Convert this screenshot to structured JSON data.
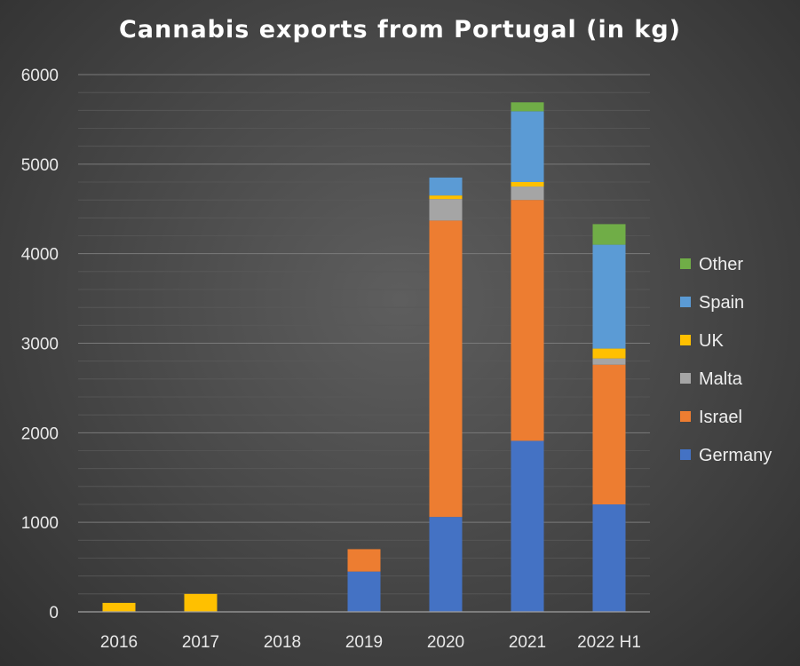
{
  "chart_data": {
    "type": "bar",
    "stacked": true,
    "title": "Cannabis exports from Portugal (in kg)",
    "xlabel": "",
    "ylabel": "",
    "ylim": [
      0,
      6000
    ],
    "yticks": [
      0,
      1000,
      2000,
      3000,
      4000,
      5000,
      6000
    ],
    "grid": true,
    "legend_position": "right",
    "categories": [
      "2016",
      "2017",
      "2018",
      "2019",
      "2020",
      "2021",
      "2022 H1"
    ],
    "series": [
      {
        "name": "Germany",
        "color": "#4472C4",
        "values": [
          0,
          0,
          0,
          450,
          1060,
          1910,
          1200
        ]
      },
      {
        "name": "Israel",
        "color": "#ED7D31",
        "values": [
          0,
          0,
          0,
          250,
          3310,
          2690,
          1560
        ]
      },
      {
        "name": "Malta",
        "color": "#A5A5A5",
        "values": [
          0,
          0,
          0,
          0,
          240,
          150,
          70
        ]
      },
      {
        "name": "UK",
        "color": "#FFC000",
        "values": [
          100,
          200,
          0,
          0,
          40,
          50,
          110
        ]
      },
      {
        "name": "Spain",
        "color": "#5B9BD5",
        "values": [
          0,
          0,
          0,
          0,
          200,
          790,
          1160
        ]
      },
      {
        "name": "Other",
        "color": "#70AD47",
        "values": [
          0,
          0,
          0,
          0,
          0,
          100,
          230
        ]
      }
    ]
  }
}
